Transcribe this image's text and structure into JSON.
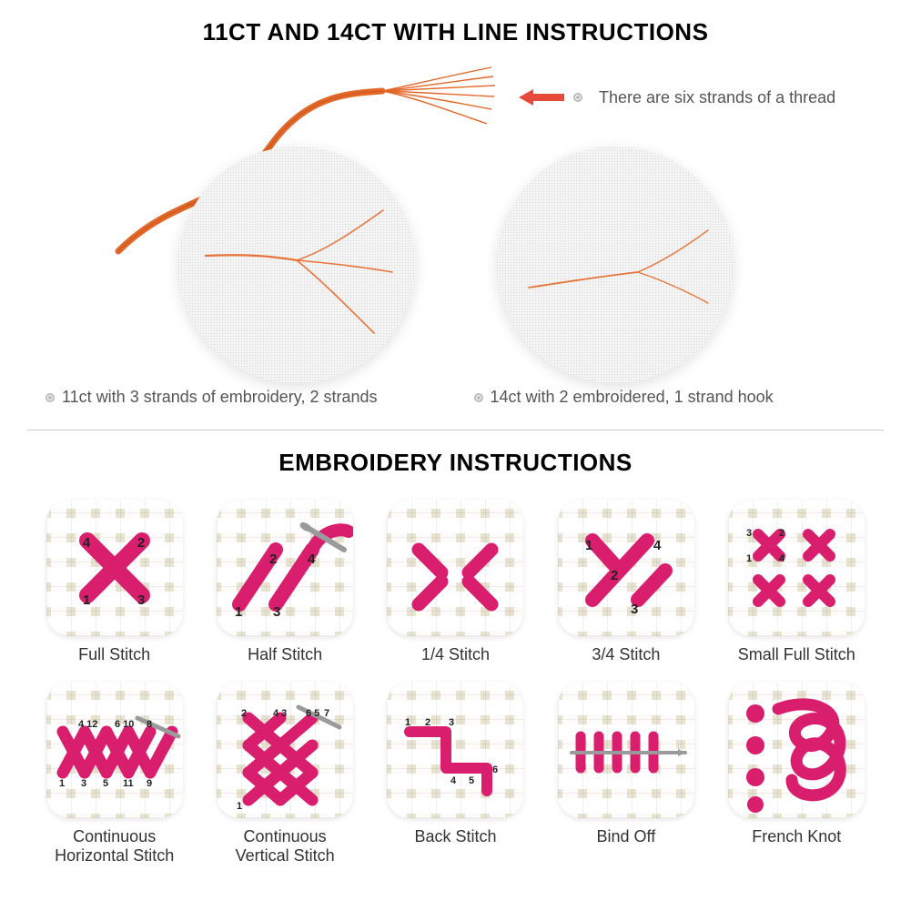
{
  "colors": {
    "thread_orange": "#e2682a",
    "arrow_red": "#e74a3a",
    "stitch_pink": "#d91e6e",
    "stitch_pink_light": "#e85a96",
    "needle_gray": "#9a9a9a",
    "text_dark": "#000000",
    "text_muted": "#555555",
    "fabric_tan": "#e8e2d0",
    "divider": "#cccccc"
  },
  "typography": {
    "title_fontsize": 26,
    "caption_fontsize": 18,
    "label_fontsize": 18
  },
  "top": {
    "title": "11CT AND 14CT WITH LINE INSTRUCTIONS",
    "callout": "There are six strands of a thread",
    "caption_left": "11ct with 3 strands of embroidery, 2 strands",
    "caption_right": "14ct with 2 embroidered, 1 strand hook",
    "circle_left": {
      "strands": 3
    },
    "circle_right": {
      "strands": 2
    }
  },
  "bottom": {
    "title": "EMBROIDERY INSTRUCTIONS",
    "stitches": [
      {
        "id": "full",
        "label": "Full Stitch"
      },
      {
        "id": "half",
        "label": "Half Stitch"
      },
      {
        "id": "quarter",
        "label": "1/4 Stitch"
      },
      {
        "id": "three-quarter",
        "label": "3/4 Stitch"
      },
      {
        "id": "small-full",
        "label": "Small Full Stitch"
      },
      {
        "id": "cont-horizontal",
        "label": "Continuous\nHorizontal Stitch"
      },
      {
        "id": "cont-vertical",
        "label": "Continuous\nVertical Stitch"
      },
      {
        "id": "back",
        "label": "Back Stitch"
      },
      {
        "id": "bind-off",
        "label": "Bind Off"
      },
      {
        "id": "french-knot",
        "label": "French Knot"
      }
    ]
  }
}
